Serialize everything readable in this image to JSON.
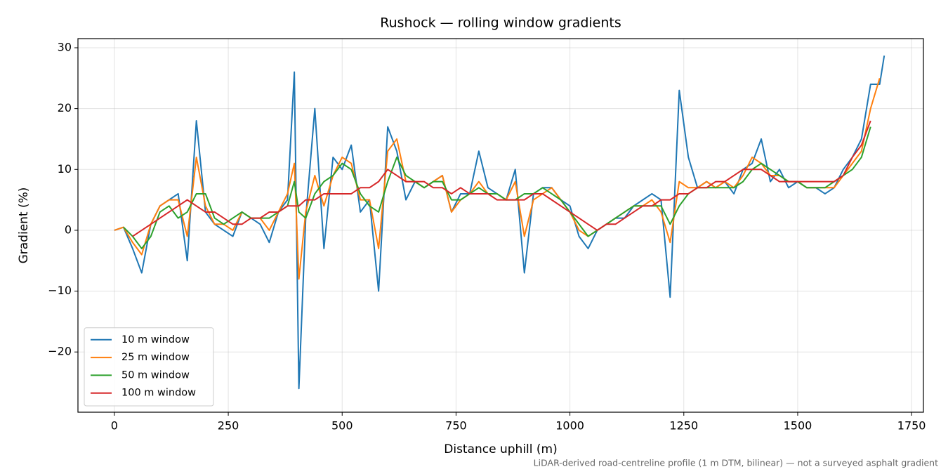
{
  "chart_data": {
    "type": "line",
    "title": "Rushock — rolling window gradients",
    "xlabel": "Distance uphill (m)",
    "ylabel": "Gradient (%)",
    "footnote": "LiDAR-derived road-centreline profile (1 m DTM, bilinear) — not a surveyed asphalt gradient",
    "x": [
      0,
      20,
      40,
      60,
      80,
      100,
      120,
      140,
      160,
      180,
      200,
      220,
      240,
      260,
      280,
      300,
      320,
      340,
      360,
      380,
      395,
      405,
      420,
      440,
      460,
      480,
      500,
      520,
      540,
      560,
      580,
      600,
      620,
      640,
      660,
      680,
      700,
      720,
      740,
      760,
      780,
      800,
      820,
      840,
      860,
      880,
      900,
      920,
      940,
      960,
      980,
      1000,
      1020,
      1040,
      1060,
      1080,
      1100,
      1120,
      1140,
      1160,
      1180,
      1200,
      1220,
      1240,
      1260,
      1280,
      1300,
      1320,
      1340,
      1360,
      1380,
      1400,
      1420,
      1440,
      1460,
      1480,
      1500,
      1520,
      1540,
      1560,
      1580,
      1600,
      1620,
      1640,
      1660,
      1680,
      1690
    ],
    "series": [
      {
        "name": "10 m window",
        "color": "#1f77b4",
        "values": [
          0,
          0.5,
          -3,
          -7,
          1,
          4,
          5,
          6,
          -5,
          18,
          3,
          1,
          0,
          -1,
          3,
          2,
          1,
          -2,
          3,
          5,
          26,
          -26,
          2,
          20,
          -3,
          12,
          10,
          14,
          3,
          5,
          -10,
          17,
          13,
          5,
          8,
          7,
          8,
          9,
          3,
          6,
          6,
          13,
          7,
          6,
          5,
          10,
          -7,
          6,
          7,
          7,
          5,
          4,
          -1,
          -3,
          0,
          1,
          2,
          2,
          4,
          5,
          6,
          5,
          -11,
          23,
          12,
          7,
          8,
          7,
          8,
          6,
          10,
          11,
          15,
          8,
          10,
          7,
          8,
          7,
          7,
          6,
          7,
          10,
          12,
          15,
          24,
          24,
          28.7
        ]
      },
      {
        "name": "25 m window",
        "color": "#ff7f0e",
        "values": [
          0,
          0.5,
          -2,
          -4,
          1,
          4,
          5,
          5,
          -1,
          12,
          4,
          1,
          1,
          0,
          3,
          2,
          2,
          0,
          3,
          6,
          11,
          -8,
          3,
          9,
          4,
          9,
          12,
          11,
          5,
          5,
          -3,
          13,
          15,
          8,
          8,
          7,
          8,
          9,
          3,
          5,
          6,
          8,
          6,
          6,
          5,
          8,
          -1,
          5,
          6,
          7,
          5,
          3,
          0,
          -1,
          0,
          1,
          2,
          3,
          4,
          4,
          5,
          3,
          -2,
          8,
          7,
          7,
          8,
          7,
          8,
          7,
          9,
          12,
          11,
          9,
          9,
          8,
          8,
          7,
          7,
          7,
          7,
          9,
          11,
          13,
          20,
          25,
          null
        ]
      },
      {
        "name": "50 m window",
        "color": "#2ca02c",
        "values": [
          null,
          0.5,
          -1,
          -3,
          -1,
          3,
          4,
          2,
          3,
          6,
          6,
          2,
          1,
          2,
          3,
          2,
          2,
          2,
          3,
          4,
          8,
          3,
          2,
          6,
          8,
          9,
          11,
          10,
          6,
          4,
          3,
          8,
          12,
          9,
          8,
          7,
          8,
          8,
          5,
          5,
          6,
          7,
          6,
          6,
          5,
          5,
          6,
          6,
          7,
          6,
          5,
          3,
          1,
          -1,
          0,
          1,
          2,
          3,
          4,
          4,
          4,
          4,
          1,
          4,
          6,
          7,
          7,
          7,
          7,
          7,
          8,
          10,
          11,
          10,
          9,
          8,
          8,
          7,
          7,
          7,
          8,
          9,
          10,
          12,
          17,
          null,
          null
        ]
      },
      {
        "name": "100 m window",
        "color": "#d62728",
        "values": [
          null,
          null,
          -1,
          0,
          1,
          2,
          3,
          4,
          5,
          4,
          3,
          3,
          2,
          1,
          1,
          2,
          2,
          3,
          3,
          4,
          4,
          4,
          5,
          5,
          6,
          6,
          6,
          6,
          7,
          7,
          8,
          10,
          9,
          8,
          8,
          8,
          7,
          7,
          6,
          7,
          6,
          6,
          6,
          5,
          5,
          5,
          5,
          6,
          6,
          5,
          4,
          3,
          2,
          1,
          0,
          1,
          1,
          2,
          3,
          4,
          4,
          5,
          5,
          6,
          6,
          7,
          7,
          8,
          8,
          9,
          10,
          10,
          10,
          9,
          8,
          8,
          8,
          8,
          8,
          8,
          8,
          9,
          12,
          14,
          18,
          null,
          null
        ]
      }
    ],
    "xlim": [
      -80,
      1776
    ],
    "ylim": [
      -29.9,
      31.5
    ],
    "xticks": [
      0,
      250,
      500,
      750,
      1000,
      1250,
      1500,
      1750
    ],
    "yticks": [
      {
        "value": -20,
        "label": "−20"
      },
      {
        "value": -10,
        "label": "−10"
      },
      0,
      10,
      20,
      30
    ],
    "grid": true,
    "legend": "lower left"
  }
}
